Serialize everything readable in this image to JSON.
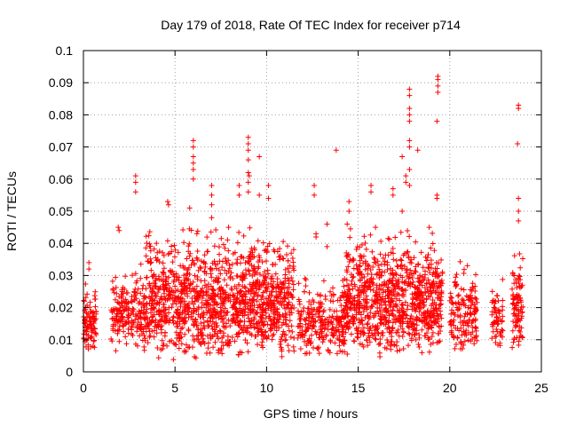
{
  "chart_data": {
    "type": "scatter",
    "title": "Day 179 of 2018, Rate Of TEC Index for receiver p714",
    "xlabel": "GPS time / hours",
    "ylabel": "ROTI / TECUs",
    "xlim": [
      0,
      25
    ],
    "ylim": [
      0,
      0.1
    ],
    "xticks": [
      0,
      5,
      10,
      15,
      20,
      25
    ],
    "xtick_labels": [
      "0",
      "5",
      "10",
      "15",
      "20",
      "25"
    ],
    "yticks": [
      0,
      0.01,
      0.02,
      0.03,
      0.04,
      0.05,
      0.06,
      0.07,
      0.08,
      0.09,
      0.1
    ],
    "ytick_labels": [
      "0",
      "0.01",
      "0.02",
      "0.03",
      "0.04",
      "0.05",
      "0.06",
      "0.07",
      "0.08",
      "0.09",
      "0.1"
    ],
    "grid": true,
    "marker": "+",
    "marker_color": "#ff0000",
    "clusters": [
      {
        "x_start": 0.0,
        "x_end": 0.7,
        "y_min": 0.005,
        "y_max": 0.028,
        "count": 90
      },
      {
        "x_start": 1.5,
        "x_end": 2.5,
        "y_min": 0.006,
        "y_max": 0.032,
        "count": 110
      },
      {
        "x_start": 2.6,
        "x_end": 3.4,
        "y_min": 0.004,
        "y_max": 0.035,
        "count": 90
      },
      {
        "x_start": 3.4,
        "x_end": 11.5,
        "y_min": 0.003,
        "y_max": 0.045,
        "count": 1300
      },
      {
        "x_start": 11.7,
        "x_end": 14.3,
        "y_min": 0.004,
        "y_max": 0.03,
        "count": 260
      },
      {
        "x_start": 14.3,
        "x_end": 19.6,
        "y_min": 0.004,
        "y_max": 0.045,
        "count": 900
      },
      {
        "x_start": 20.0,
        "x_end": 21.5,
        "y_min": 0.005,
        "y_max": 0.035,
        "count": 160
      },
      {
        "x_start": 22.3,
        "x_end": 22.9,
        "y_min": 0.005,
        "y_max": 0.03,
        "count": 60
      },
      {
        "x_start": 23.4,
        "x_end": 24.0,
        "y_min": 0.005,
        "y_max": 0.04,
        "count": 90
      }
    ],
    "outlier_points": [
      {
        "x": 0.3,
        "y": 0.034
      },
      {
        "x": 0.3,
        "y": 0.032
      },
      {
        "x": 1.9,
        "y": 0.045
      },
      {
        "x": 1.95,
        "y": 0.044
      },
      {
        "x": 2.85,
        "y": 0.061
      },
      {
        "x": 2.85,
        "y": 0.059
      },
      {
        "x": 2.85,
        "y": 0.056
      },
      {
        "x": 4.6,
        "y": 0.053
      },
      {
        "x": 4.65,
        "y": 0.052
      },
      {
        "x": 5.8,
        "y": 0.051
      },
      {
        "x": 6.0,
        "y": 0.072
      },
      {
        "x": 6.0,
        "y": 0.07
      },
      {
        "x": 6.0,
        "y": 0.067
      },
      {
        "x": 6.0,
        "y": 0.065
      },
      {
        "x": 6.0,
        "y": 0.063
      },
      {
        "x": 6.0,
        "y": 0.06
      },
      {
        "x": 7.0,
        "y": 0.058
      },
      {
        "x": 7.0,
        "y": 0.055
      },
      {
        "x": 7.0,
        "y": 0.052
      },
      {
        "x": 7.0,
        "y": 0.048
      },
      {
        "x": 8.5,
        "y": 0.058
      },
      {
        "x": 8.5,
        "y": 0.055
      },
      {
        "x": 9.0,
        "y": 0.073
      },
      {
        "x": 9.0,
        "y": 0.071
      },
      {
        "x": 9.0,
        "y": 0.069
      },
      {
        "x": 9.0,
        "y": 0.066
      },
      {
        "x": 9.0,
        "y": 0.062
      },
      {
        "x": 9.0,
        "y": 0.059
      },
      {
        "x": 9.0,
        "y": 0.056
      },
      {
        "x": 9.05,
        "y": 0.061
      },
      {
        "x": 9.6,
        "y": 0.067
      },
      {
        "x": 9.6,
        "y": 0.055
      },
      {
        "x": 10.1,
        "y": 0.058
      },
      {
        "x": 10.1,
        "y": 0.054
      },
      {
        "x": 12.6,
        "y": 0.058
      },
      {
        "x": 12.6,
        "y": 0.055
      },
      {
        "x": 12.7,
        "y": 0.043
      },
      {
        "x": 12.7,
        "y": 0.042
      },
      {
        "x": 13.3,
        "y": 0.046
      },
      {
        "x": 13.3,
        "y": 0.039
      },
      {
        "x": 13.8,
        "y": 0.069
      },
      {
        "x": 14.4,
        "y": 0.046
      },
      {
        "x": 14.5,
        "y": 0.05
      },
      {
        "x": 14.5,
        "y": 0.053
      },
      {
        "x": 15.7,
        "y": 0.058
      },
      {
        "x": 15.7,
        "y": 0.056
      },
      {
        "x": 16.9,
        "y": 0.057
      },
      {
        "x": 16.9,
        "y": 0.055
      },
      {
        "x": 17.4,
        "y": 0.067
      },
      {
        "x": 17.4,
        "y": 0.05
      },
      {
        "x": 17.6,
        "y": 0.061
      },
      {
        "x": 17.6,
        "y": 0.059
      },
      {
        "x": 17.8,
        "y": 0.088
      },
      {
        "x": 17.8,
        "y": 0.086
      },
      {
        "x": 17.8,
        "y": 0.082
      },
      {
        "x": 17.8,
        "y": 0.08
      },
      {
        "x": 17.8,
        "y": 0.078
      },
      {
        "x": 17.8,
        "y": 0.072
      },
      {
        "x": 17.8,
        "y": 0.07
      },
      {
        "x": 17.8,
        "y": 0.063
      },
      {
        "x": 17.8,
        "y": 0.058
      },
      {
        "x": 18.25,
        "y": 0.069
      },
      {
        "x": 19.35,
        "y": 0.092
      },
      {
        "x": 19.35,
        "y": 0.091
      },
      {
        "x": 19.35,
        "y": 0.089
      },
      {
        "x": 19.35,
        "y": 0.087
      },
      {
        "x": 19.3,
        "y": 0.078
      },
      {
        "x": 19.3,
        "y": 0.055
      },
      {
        "x": 19.3,
        "y": 0.054
      },
      {
        "x": 23.75,
        "y": 0.083
      },
      {
        "x": 23.75,
        "y": 0.082
      },
      {
        "x": 23.7,
        "y": 0.071
      },
      {
        "x": 23.75,
        "y": 0.054
      },
      {
        "x": 23.75,
        "y": 0.05
      },
      {
        "x": 23.75,
        "y": 0.047
      }
    ]
  }
}
